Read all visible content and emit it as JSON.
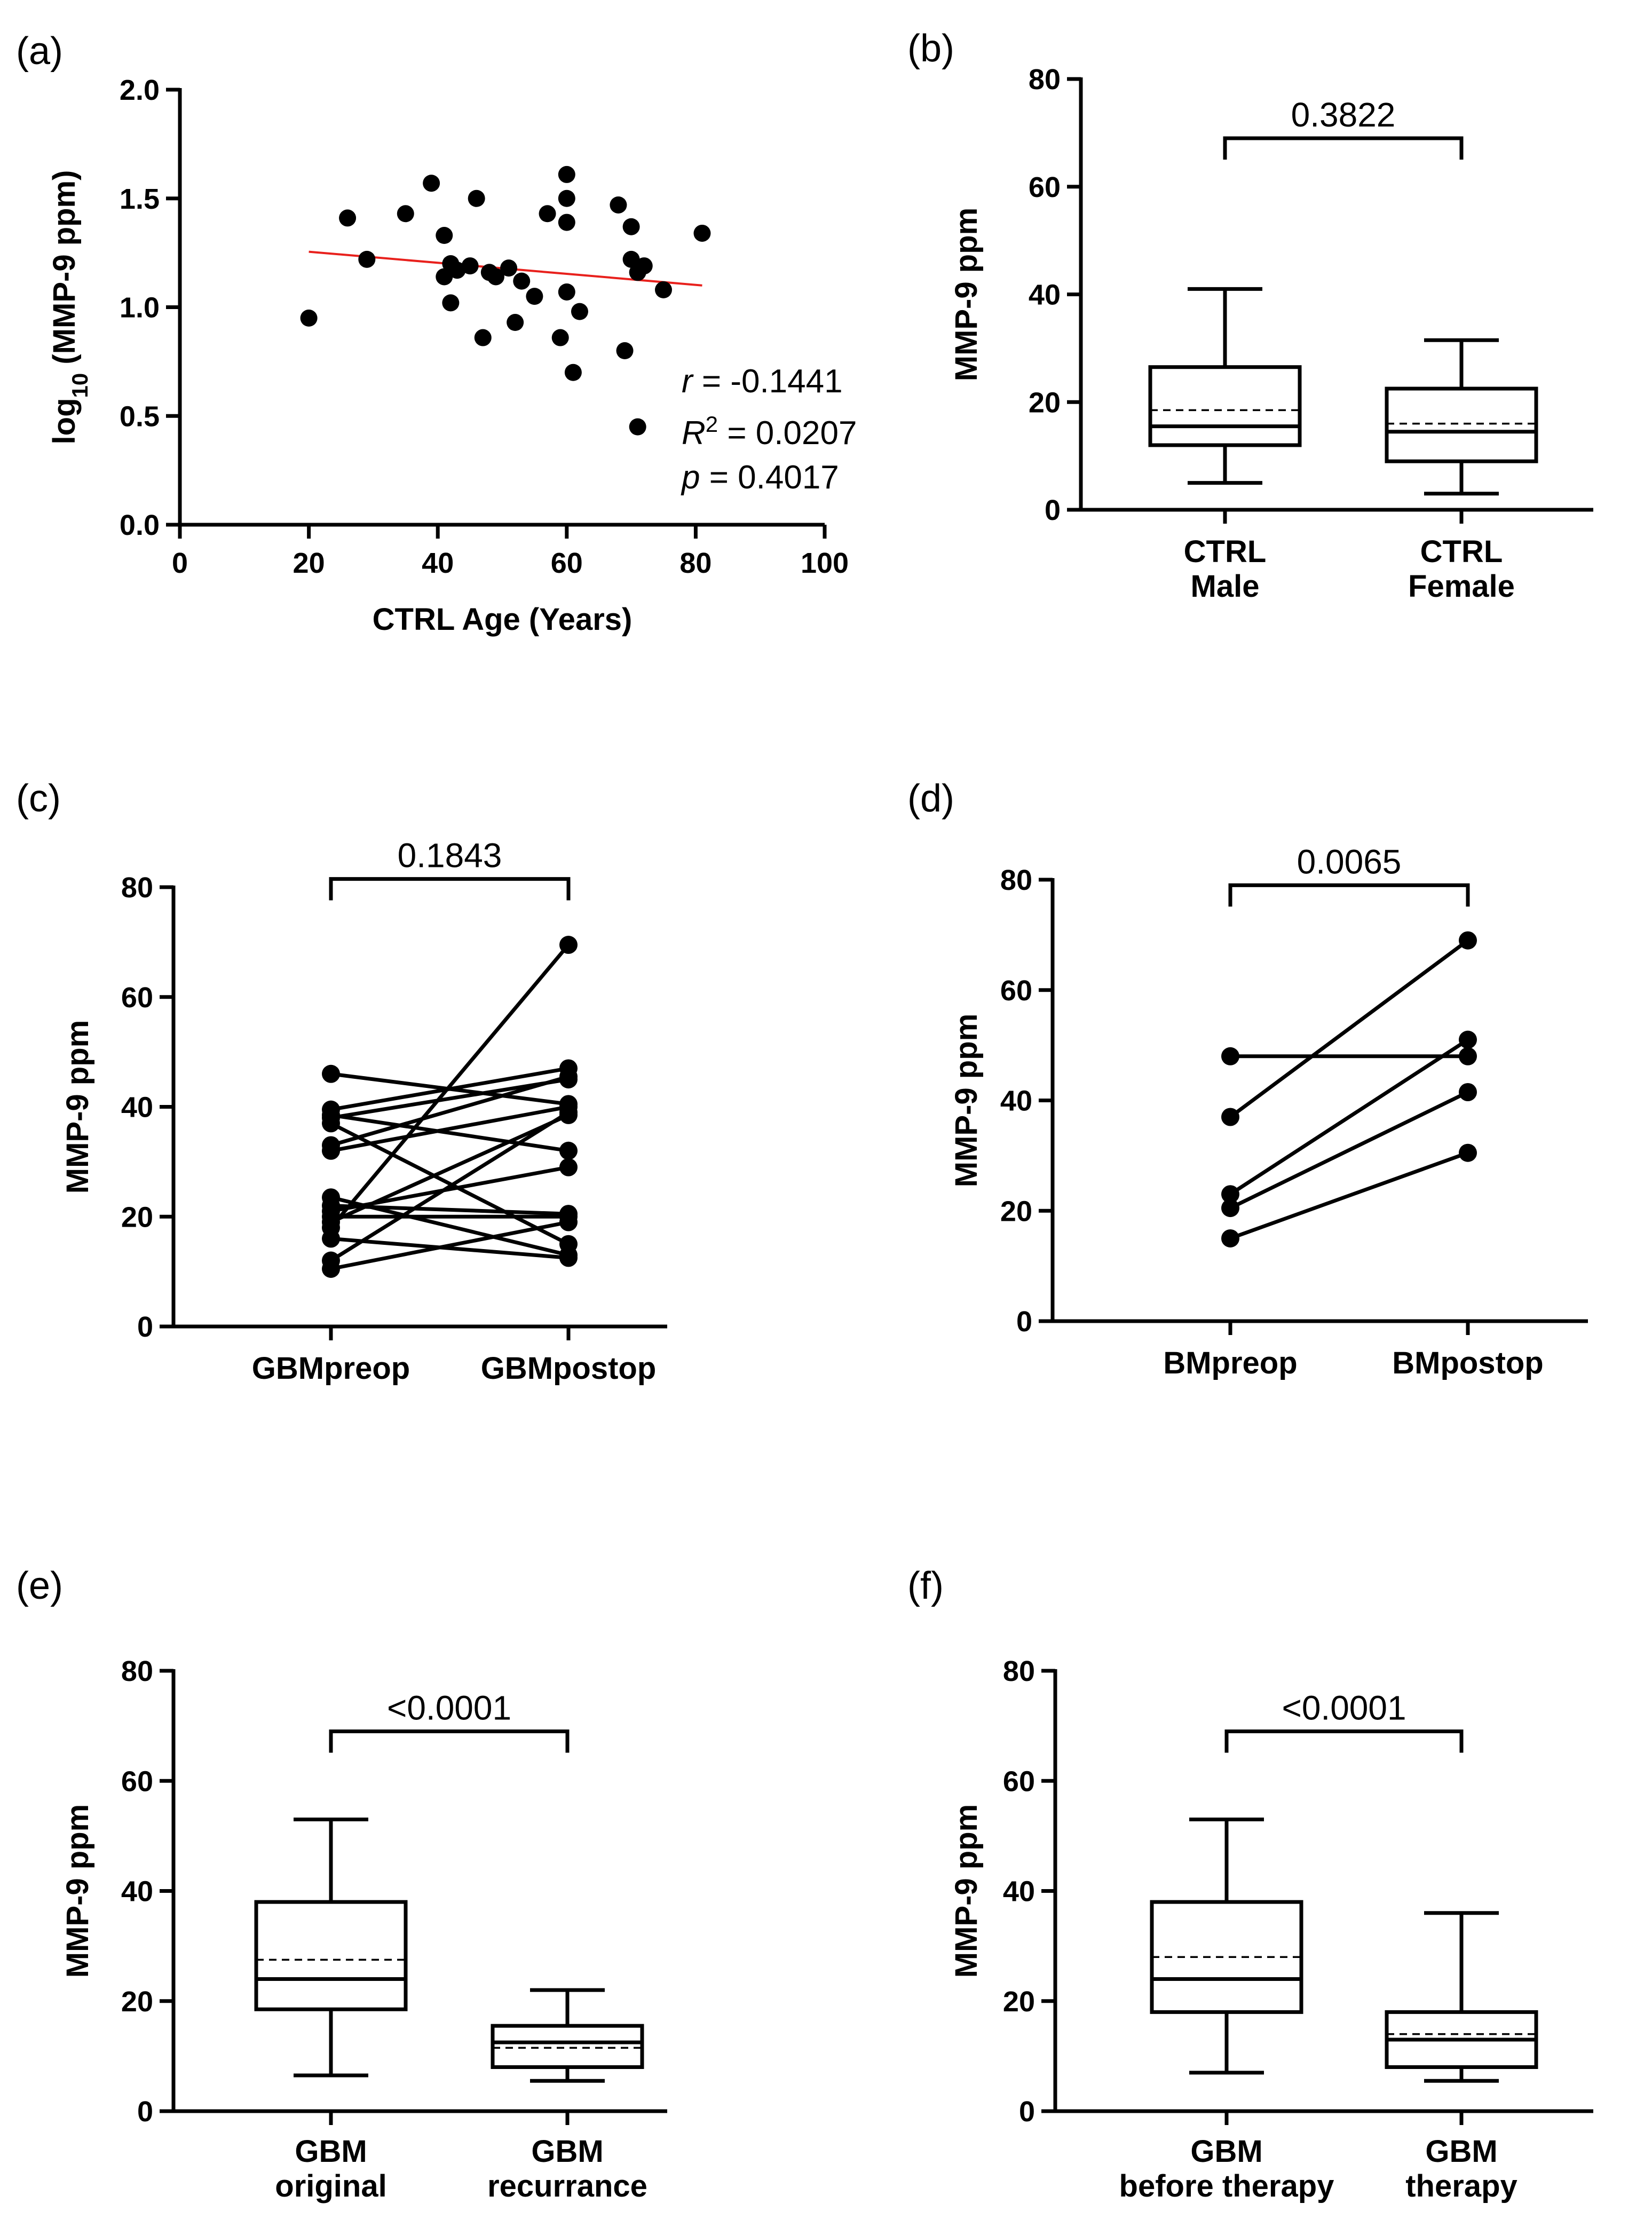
{
  "chart_data": [
    {
      "id": "a",
      "panel_label": "(a)",
      "type": "scatter",
      "xlabel": "CTRL Age (Years)",
      "ylabel_main": "log",
      "ylabel_sub": "10",
      "ylabel_rest": " (MMP-9 ppm)",
      "xlim": [
        0,
        100
      ],
      "ylim": [
        0,
        2.0
      ],
      "xticks": [
        "0",
        "20",
        "40",
        "60",
        "80",
        "100"
      ],
      "yticks": [
        "0.0",
        "0.5",
        "1.0",
        "1.5",
        "2.0"
      ],
      "points": [
        [
          20,
          0.95
        ],
        [
          26,
          1.41
        ],
        [
          29,
          1.22
        ],
        [
          35,
          1.43
        ],
        [
          39,
          1.57
        ],
        [
          41,
          1.33
        ],
        [
          41,
          1.14
        ],
        [
          42,
          1.2
        ],
        [
          42,
          1.02
        ],
        [
          43,
          1.17
        ],
        [
          45,
          1.19
        ],
        [
          46,
          1.5
        ],
        [
          47,
          0.86
        ],
        [
          48,
          1.16
        ],
        [
          49,
          1.14
        ],
        [
          51,
          1.18
        ],
        [
          52,
          0.93
        ],
        [
          53,
          1.12
        ],
        [
          55,
          1.05
        ],
        [
          57,
          1.43
        ],
        [
          59,
          0.86
        ],
        [
          60,
          1.61
        ],
        [
          60,
          1.5
        ],
        [
          60,
          1.39
        ],
        [
          60,
          1.07
        ],
        [
          61,
          0.7
        ],
        [
          62,
          0.98
        ],
        [
          68,
          1.47
        ],
        [
          69,
          0.8
        ],
        [
          70,
          1.37
        ],
        [
          70,
          1.22
        ],
        [
          71,
          1.16
        ],
        [
          71,
          0.45
        ],
        [
          72,
          1.19
        ],
        [
          75,
          1.08
        ],
        [
          81,
          1.34
        ]
      ],
      "regression": {
        "x": [
          20,
          81
        ],
        "y": [
          1.255,
          1.1
        ],
        "color": "#e8201c"
      },
      "stats": {
        "r_symbol": "r",
        "r_value": " = -0.1441",
        "r2_symbol": "R",
        "r2_sup": "2",
        "r2_value": " = 0.0207",
        "p_symbol": "p",
        "p_value": " = 0.4017"
      }
    },
    {
      "id": "b",
      "panel_label": "(b)",
      "type": "box",
      "ylabel": "MMP-9 ppm",
      "ylim": [
        0,
        80
      ],
      "yticks": [
        "0",
        "20",
        "40",
        "60",
        "80"
      ],
      "categories": [
        [
          "CTRL",
          "Male"
        ],
        [
          "CTRL",
          "Female"
        ]
      ],
      "boxes": [
        {
          "min": 5,
          "q1": 12,
          "median": 15.5,
          "mean": 18.5,
          "q3": 26.5,
          "max": 41
        },
        {
          "min": 3,
          "q1": 9,
          "median": 14.5,
          "mean": 16,
          "q3": 22.5,
          "max": 31.5
        }
      ],
      "significance": "0.3822",
      "bracket_y": 69
    },
    {
      "id": "c",
      "panel_label": "(c)",
      "type": "paired",
      "ylabel": "MMP-9 ppm",
      "ylim": [
        0,
        80
      ],
      "yticks": [
        "0",
        "20",
        "40",
        "60",
        "80"
      ],
      "categories": [
        "GBMpreop",
        "GBMpostop"
      ],
      "pairs": [
        [
          46,
          40.5
        ],
        [
          39.5,
          47
        ],
        [
          38.5,
          32
        ],
        [
          38,
          45
        ],
        [
          37,
          15
        ],
        [
          33,
          45.5
        ],
        [
          32,
          40
        ],
        [
          23.5,
          13
        ],
        [
          22,
          20.5
        ],
        [
          21,
          29
        ],
        [
          20,
          20
        ],
        [
          19,
          38.5
        ],
        [
          18,
          69.5
        ],
        [
          16,
          12.5
        ],
        [
          12,
          39
        ],
        [
          10.5,
          19
        ]
      ],
      "significance": "0.1843",
      "bracket_y": 81.5
    },
    {
      "id": "d",
      "panel_label": "(d)",
      "type": "paired",
      "ylabel": "MMP-9 ppm",
      "ylim": [
        0,
        80
      ],
      "yticks": [
        "0",
        "20",
        "40",
        "60",
        "80"
      ],
      "categories": [
        "BMpreop",
        "BMpostop"
      ],
      "pairs": [
        [
          48,
          48
        ],
        [
          37,
          69
        ],
        [
          23,
          51
        ],
        [
          20.5,
          41.5
        ],
        [
          15,
          30.5
        ]
      ],
      "significance": "0.0065",
      "bracket_y": 79
    },
    {
      "id": "e",
      "panel_label": "(e)",
      "type": "box",
      "ylabel": "MMP-9 ppm",
      "ylim": [
        0,
        80
      ],
      "yticks": [
        "0",
        "20",
        "40",
        "60",
        "80"
      ],
      "categories": [
        [
          "GBM",
          "original"
        ],
        [
          "GBM",
          "recurrance"
        ]
      ],
      "boxes": [
        {
          "min": 6.5,
          "q1": 18.5,
          "median": 24,
          "mean": 27.5,
          "q3": 38,
          "max": 53
        },
        {
          "min": 5.5,
          "q1": 8,
          "median": 12.5,
          "mean": 11.5,
          "q3": 15.5,
          "max": 22
        }
      ],
      "significance": "<0.0001",
      "bracket_y": 69
    },
    {
      "id": "f",
      "panel_label": "(f)",
      "type": "box",
      "ylabel": "MMP-9 ppm",
      "ylim": [
        0,
        80
      ],
      "yticks": [
        "0",
        "20",
        "40",
        "60",
        "80"
      ],
      "categories": [
        [
          "GBM",
          "before therapy"
        ],
        [
          "GBM",
          "therapy"
        ]
      ],
      "boxes": [
        {
          "min": 7,
          "q1": 18,
          "median": 24,
          "mean": 28,
          "q3": 38,
          "max": 53
        },
        {
          "min": 5.5,
          "q1": 8,
          "median": 13,
          "mean": 14,
          "q3": 18,
          "max": 36
        }
      ],
      "significance": "<0.0001",
      "bracket_y": 69
    }
  ]
}
